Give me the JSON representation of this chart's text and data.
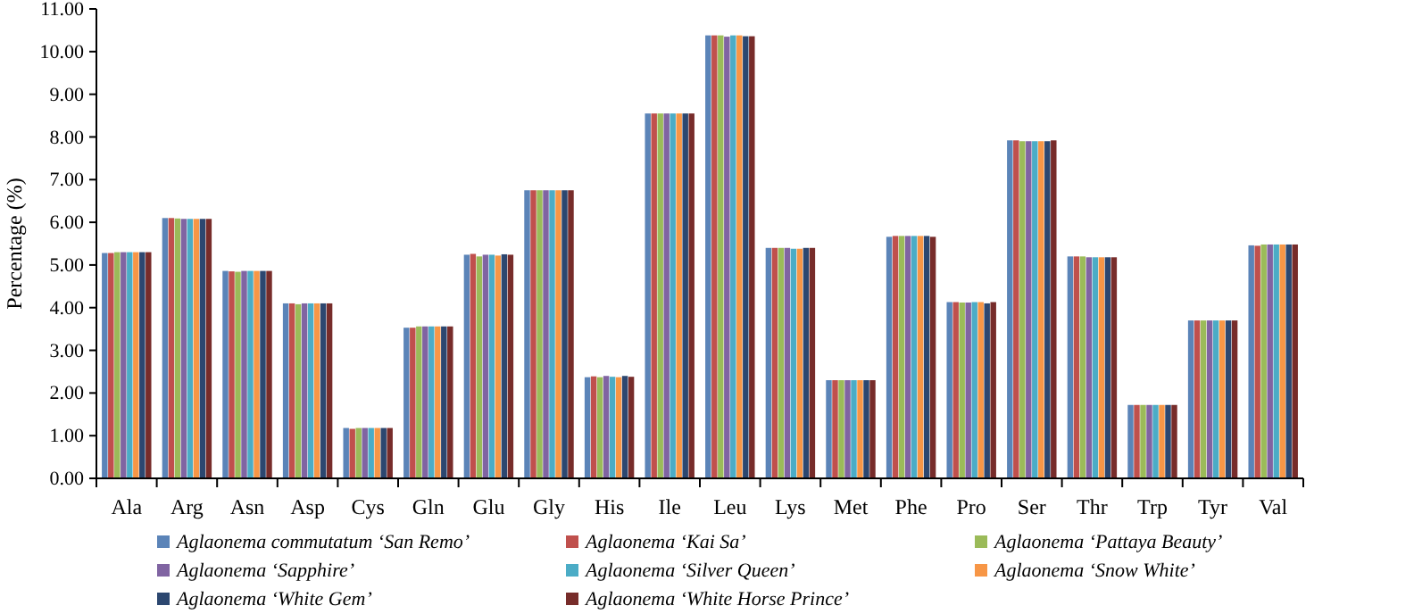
{
  "chart_data": {
    "type": "bar",
    "ylabel": "Percentage (%)",
    "categories": [
      "Ala",
      "Arg",
      "Asn",
      "Asp",
      "Cys",
      "Gln",
      "Glu",
      "Gly",
      "His",
      "Ile",
      "Leu",
      "Lys",
      "Met",
      "Phe",
      "Pro",
      "Ser",
      "Thr",
      "Trp",
      "Tyr",
      "Val"
    ],
    "ylim": [
      0,
      11
    ],
    "yticks": [
      {
        "value": 0,
        "label": "0.00"
      },
      {
        "value": 1,
        "label": "1.00"
      },
      {
        "value": 2,
        "label": "2.00"
      },
      {
        "value": 3,
        "label": "3.00"
      },
      {
        "value": 4,
        "label": "4.00"
      },
      {
        "value": 5,
        "label": "5.00"
      },
      {
        "value": 6,
        "label": "6.00"
      },
      {
        "value": 7,
        "label": "7.00"
      },
      {
        "value": 8,
        "label": "8.00"
      },
      {
        "value": 9,
        "label": "9.00"
      },
      {
        "value": 10,
        "label": "10.00"
      },
      {
        "value": 11,
        "label": "11.00"
      }
    ],
    "grid": false,
    "legend": "bottom",
    "series": [
      {
        "name": "Aglaonema commutatum ‘San Remo’",
        "color": "#5b84b8",
        "values": [
          5.28,
          6.1,
          4.86,
          4.1,
          1.18,
          3.53,
          5.24,
          6.75,
          2.37,
          8.55,
          10.38,
          5.4,
          2.3,
          5.66,
          4.13,
          7.92,
          5.2,
          1.72,
          3.7,
          5.46
        ]
      },
      {
        "name": "Aglaonema ‘Kai Sa’",
        "color": "#c0504d",
        "values": [
          5.28,
          6.1,
          4.85,
          4.1,
          1.16,
          3.53,
          5.26,
          6.75,
          2.39,
          8.55,
          10.38,
          5.4,
          2.3,
          5.68,
          4.13,
          7.92,
          5.2,
          1.72,
          3.7,
          5.45
        ]
      },
      {
        "name": "Aglaonema ‘Pattaya Beauty’",
        "color": "#9bbb59",
        "values": [
          5.3,
          6.09,
          4.84,
          4.08,
          1.18,
          3.56,
          5.2,
          6.75,
          2.37,
          8.55,
          10.38,
          5.4,
          2.3,
          5.68,
          4.12,
          7.9,
          5.2,
          1.72,
          3.7,
          5.48
        ]
      },
      {
        "name": "Aglaonema ‘Sapphire’",
        "color": "#8064a2",
        "values": [
          5.3,
          6.08,
          4.86,
          4.1,
          1.18,
          3.56,
          5.24,
          6.75,
          2.4,
          8.55,
          10.35,
          5.4,
          2.3,
          5.68,
          4.12,
          7.9,
          5.18,
          1.72,
          3.7,
          5.48
        ]
      },
      {
        "name": "Aglaonema ‘Silver Queen’",
        "color": "#4bacc6",
        "values": [
          5.3,
          6.08,
          4.86,
          4.1,
          1.18,
          3.56,
          5.24,
          6.75,
          2.38,
          8.55,
          10.38,
          5.38,
          2.3,
          5.68,
          4.13,
          7.9,
          5.18,
          1.72,
          3.7,
          5.48
        ]
      },
      {
        "name": "Aglaonema ‘Snow White’",
        "color": "#f79646",
        "values": [
          5.3,
          6.08,
          4.86,
          4.1,
          1.18,
          3.56,
          5.22,
          6.75,
          2.37,
          8.55,
          10.38,
          5.38,
          2.3,
          5.68,
          4.13,
          7.9,
          5.18,
          1.72,
          3.7,
          5.48
        ]
      },
      {
        "name": "Aglaonema ‘White Gem’",
        "color": "#2c4770",
        "values": [
          5.3,
          6.08,
          4.86,
          4.1,
          1.18,
          3.56,
          5.25,
          6.75,
          2.4,
          8.55,
          10.36,
          5.4,
          2.3,
          5.68,
          4.1,
          7.9,
          5.18,
          1.72,
          3.7,
          5.48
        ]
      },
      {
        "name": "Aglaonema ‘White Horse Prince’",
        "color": "#772c2a",
        "values": [
          5.3,
          6.08,
          4.86,
          4.1,
          1.18,
          3.56,
          5.24,
          6.75,
          2.38,
          8.55,
          10.36,
          5.4,
          2.3,
          5.66,
          4.13,
          7.92,
          5.18,
          1.72,
          3.7,
          5.48
        ]
      }
    ]
  }
}
